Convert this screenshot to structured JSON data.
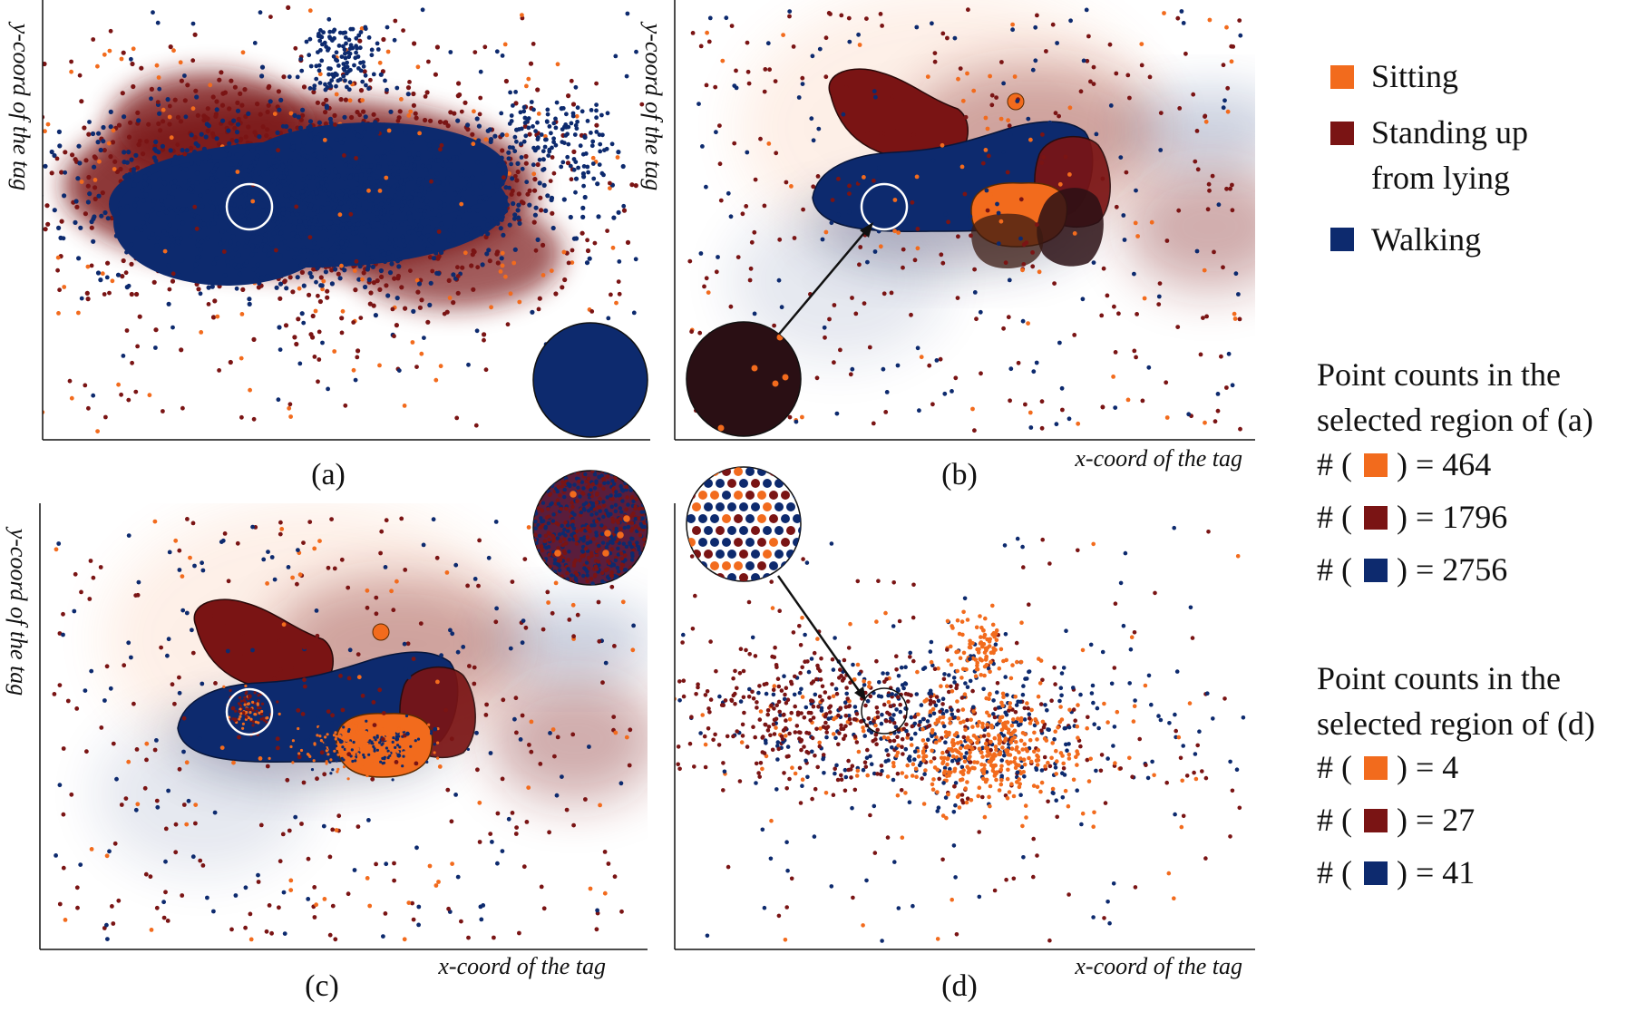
{
  "chart_data": {
    "type": "scatter",
    "series": [
      {
        "name": "Sitting",
        "color": "#f26b1d"
      },
      {
        "name": "Standing up from lying",
        "color": "#7a1414"
      },
      {
        "name": "Walking",
        "color": "#0d2a6e"
      }
    ],
    "panels": [
      {
        "id": "a",
        "caption": "(a)",
        "ylabel": "y-coord of the tag",
        "xlabel": "",
        "style": "dense-overplot"
      },
      {
        "id": "b",
        "caption": "(b)",
        "ylabel": "y-coord of the tag",
        "xlabel": "x-coord of the tag",
        "style": "density-regions-with-outliers"
      },
      {
        "id": "c",
        "caption": "(c)",
        "ylabel": "y-coord of the tag",
        "xlabel": "x-coord of the tag",
        "style": "density-regions-with-outliers"
      },
      {
        "id": "d",
        "caption": "(d)",
        "ylabel": "",
        "xlabel": "x-coord of the tag",
        "style": "sampled-scatter"
      }
    ],
    "selected_region_counts": [
      {
        "heading": [
          "Point counts in the",
          "selected region of (a)"
        ],
        "rows": [
          {
            "series": "Sitting",
            "text": "= 464"
          },
          {
            "series": "Standing up from lying",
            "text": "= 1796"
          },
          {
            "series": "Walking",
            "text": "= 2756"
          }
        ]
      },
      {
        "heading": [
          "Point counts in the",
          "selected region of (d)"
        ],
        "rows": [
          {
            "series": "Sitting",
            "text": "= 4"
          },
          {
            "series": "Standing up from lying",
            "text": "= 27"
          },
          {
            "series": "Walking",
            "text": "= 41"
          }
        ]
      }
    ]
  },
  "legend": {
    "items": [
      {
        "lines": [
          "Sitting"
        ],
        "color": "#f26b1d"
      },
      {
        "lines": [
          "Standing up",
          "from lying"
        ],
        "color": "#7a1414"
      },
      {
        "lines": [
          "Walking"
        ],
        "color": "#0d2a6e"
      }
    ]
  },
  "count_labels": {
    "hash": "#",
    "open": "(",
    "close": ")"
  }
}
